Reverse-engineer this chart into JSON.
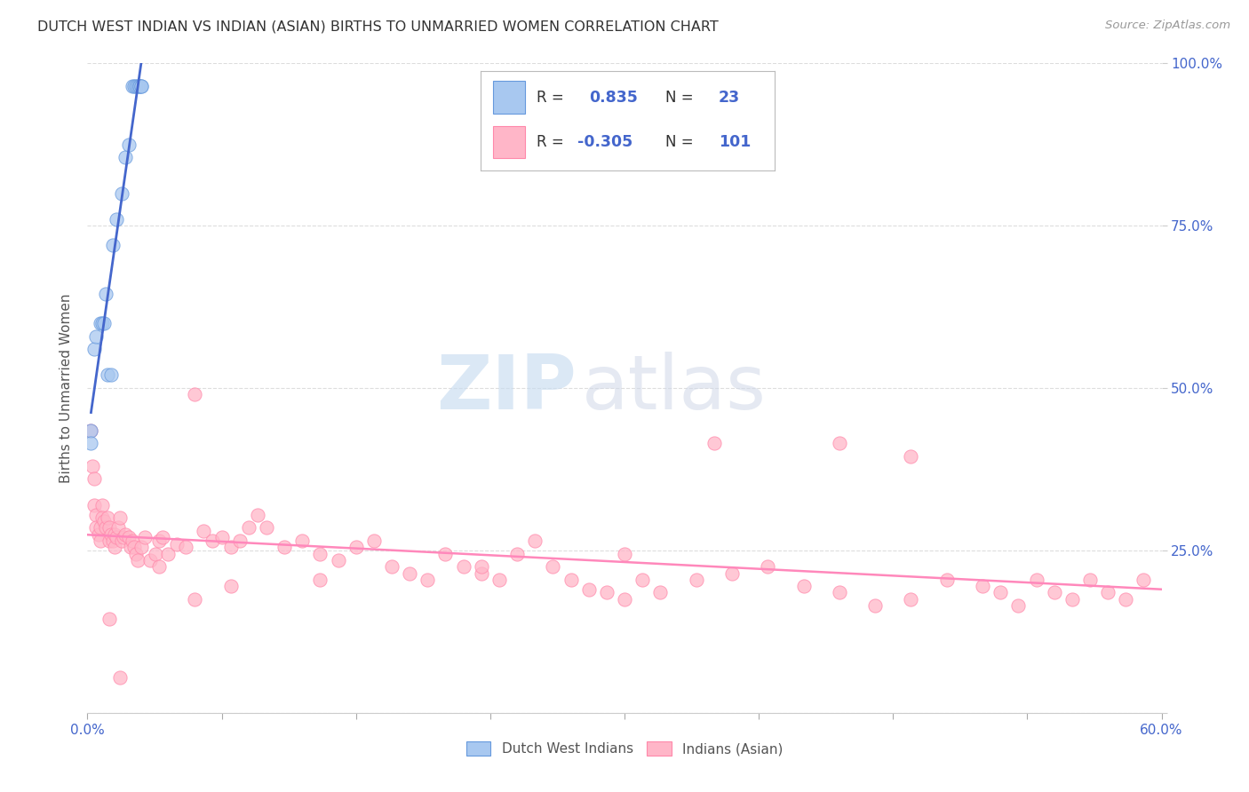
{
  "title": "DUTCH WEST INDIAN VS INDIAN (ASIAN) BIRTHS TO UNMARRIED WOMEN CORRELATION CHART",
  "source": "Source: ZipAtlas.com",
  "ylabel": "Births to Unmarried Women",
  "xlim": [
    0.0,
    0.6
  ],
  "ylim": [
    0.0,
    1.0
  ],
  "xticks": [
    0.0,
    0.075,
    0.15,
    0.225,
    0.3,
    0.375,
    0.45,
    0.525,
    0.6
  ],
  "xticklabels_show": [
    "0.0%",
    "60.0%"
  ],
  "yticks": [
    0.0,
    0.25,
    0.5,
    0.75,
    1.0
  ],
  "yticklabels": [
    "",
    "25.0%",
    "50.0%",
    "75.0%",
    "100.0%"
  ],
  "legend_label1": "Dutch West Indians",
  "legend_label2": "Indians (Asian)",
  "R1": "0.835",
  "N1": "23",
  "R2": "-0.305",
  "N2": "101",
  "color1": "#A8C8F0",
  "color2": "#FFB6C8",
  "edge_color1": "#6699DD",
  "edge_color2": "#FF88AA",
  "line_color1": "#4466CC",
  "line_color2": "#FF88BB",
  "stat_color": "#4466CC",
  "blue_x": [
    0.002,
    0.002,
    0.004,
    0.005,
    0.007,
    0.008,
    0.009,
    0.01,
    0.011,
    0.013,
    0.014,
    0.016,
    0.019,
    0.021,
    0.023,
    0.025,
    0.026,
    0.027,
    0.028,
    0.029,
    0.029,
    0.03,
    0.03
  ],
  "blue_y": [
    0.435,
    0.415,
    0.56,
    0.58,
    0.6,
    0.6,
    0.6,
    0.645,
    0.52,
    0.52,
    0.72,
    0.76,
    0.8,
    0.855,
    0.875,
    0.965,
    0.965,
    0.965,
    0.965,
    0.965,
    0.965,
    0.965,
    0.965
  ],
  "pink_x": [
    0.002,
    0.003,
    0.004,
    0.004,
    0.005,
    0.005,
    0.006,
    0.007,
    0.007,
    0.008,
    0.008,
    0.009,
    0.01,
    0.011,
    0.012,
    0.012,
    0.013,
    0.014,
    0.015,
    0.015,
    0.016,
    0.017,
    0.018,
    0.019,
    0.02,
    0.021,
    0.023,
    0.024,
    0.025,
    0.026,
    0.027,
    0.028,
    0.03,
    0.032,
    0.035,
    0.038,
    0.04,
    0.042,
    0.045,
    0.05,
    0.055,
    0.06,
    0.065,
    0.07,
    0.075,
    0.08,
    0.085,
    0.09,
    0.095,
    0.1,
    0.11,
    0.12,
    0.13,
    0.14,
    0.15,
    0.16,
    0.17,
    0.18,
    0.19,
    0.2,
    0.21,
    0.22,
    0.23,
    0.24,
    0.25,
    0.26,
    0.27,
    0.28,
    0.29,
    0.3,
    0.31,
    0.32,
    0.34,
    0.36,
    0.38,
    0.4,
    0.42,
    0.44,
    0.46,
    0.48,
    0.5,
    0.51,
    0.52,
    0.53,
    0.54,
    0.55,
    0.56,
    0.57,
    0.58,
    0.59,
    0.35,
    0.42,
    0.46,
    0.3,
    0.22,
    0.13,
    0.08,
    0.06,
    0.04,
    0.018,
    0.012
  ],
  "pink_y": [
    0.435,
    0.38,
    0.32,
    0.36,
    0.305,
    0.285,
    0.275,
    0.265,
    0.285,
    0.32,
    0.3,
    0.295,
    0.285,
    0.3,
    0.265,
    0.285,
    0.275,
    0.265,
    0.255,
    0.275,
    0.27,
    0.285,
    0.3,
    0.265,
    0.27,
    0.275,
    0.27,
    0.255,
    0.265,
    0.255,
    0.245,
    0.235,
    0.255,
    0.27,
    0.235,
    0.245,
    0.265,
    0.27,
    0.245,
    0.26,
    0.255,
    0.49,
    0.28,
    0.265,
    0.27,
    0.255,
    0.265,
    0.285,
    0.305,
    0.285,
    0.255,
    0.265,
    0.245,
    0.235,
    0.255,
    0.265,
    0.225,
    0.215,
    0.205,
    0.245,
    0.225,
    0.215,
    0.205,
    0.245,
    0.265,
    0.225,
    0.205,
    0.19,
    0.185,
    0.175,
    0.205,
    0.185,
    0.205,
    0.215,
    0.225,
    0.195,
    0.185,
    0.165,
    0.175,
    0.205,
    0.195,
    0.185,
    0.165,
    0.205,
    0.185,
    0.175,
    0.205,
    0.185,
    0.175,
    0.205,
    0.415,
    0.415,
    0.395,
    0.245,
    0.225,
    0.205,
    0.195,
    0.175,
    0.225,
    0.055,
    0.145
  ],
  "watermark_zip": "ZIP",
  "watermark_atlas": "atlas",
  "background_color": "#FFFFFF",
  "grid_color": "#DDDDDD"
}
